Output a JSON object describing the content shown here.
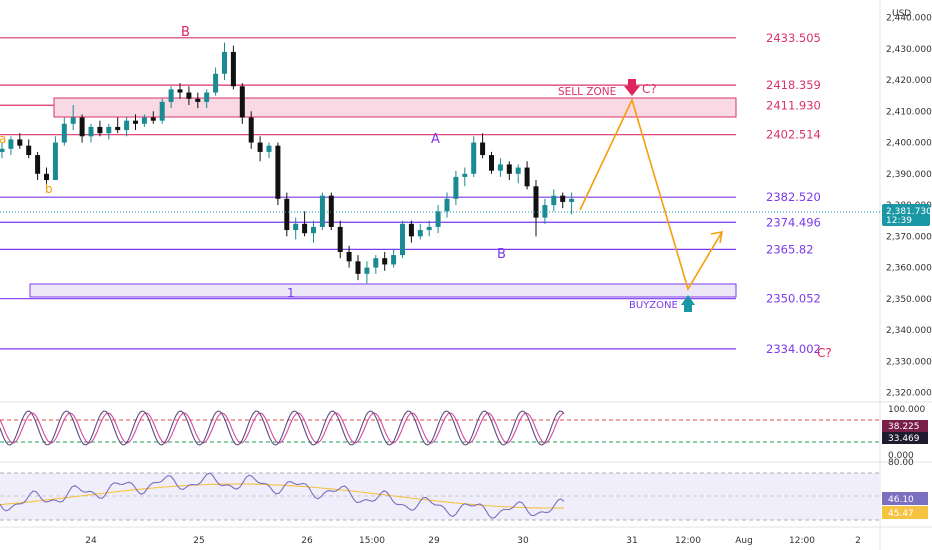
{
  "currency": "USD",
  "colors": {
    "bull": "#1a8a93",
    "bear": "#111111",
    "level_red": "#d9336b",
    "level_purple": "#7c3aed",
    "zone_fill": "#f8d9e4",
    "buy_zone_fill": "#ece8f7",
    "projection": "#f59e0b",
    "arrow_sell": "#e0245e",
    "arrow_buy": "#1a97a4",
    "stoch_k": "#5b4f7d",
    "stoch_d": "#d946a0",
    "rsi_line": "#7b6fbf",
    "rsi_ma": "#f5c242"
  },
  "price_axis": {
    "ticks": [
      "2,440.000",
      "2,430.000",
      "2,420.000",
      "2,410.000",
      "2,400.000",
      "2,390.000",
      "2,380.000",
      "2,370.000",
      "2,360.000",
      "2,350.000",
      "2,340.000",
      "2,330.000",
      "2,320.000"
    ],
    "current_price": "2,381.730",
    "countdown": "12:39"
  },
  "time_axis": {
    "labels": [
      "24",
      "25",
      "26",
      "15:00",
      "29",
      "30",
      "31",
      "12:00",
      "Aug",
      "12:00",
      "2"
    ]
  },
  "levels": [
    {
      "label": "2433.505",
      "color": "red"
    },
    {
      "label": "2418.359",
      "color": "red"
    },
    {
      "label": "2411.930",
      "color": "red"
    },
    {
      "label": "2402.514",
      "color": "red"
    },
    {
      "label": "2382.520",
      "color": "purple"
    },
    {
      "label": "2374.496",
      "color": "purple"
    },
    {
      "label": "2365.82",
      "color": "purple"
    },
    {
      "label": "2350.052",
      "color": "purple"
    },
    {
      "label": "2334.002",
      "color": "purple"
    }
  ],
  "annotations": {
    "wave_b_top": "B",
    "wave_a_left": "a",
    "wave_b_left": "b",
    "wave_a_mid": "A",
    "wave_b_mid": "B",
    "wave_1": "1",
    "sell_zone": "SELL ZONE",
    "c_top": "C?",
    "buy_zone": "BUYZONE",
    "c_bottom": "C?"
  },
  "stoch": {
    "ticks": [
      "100.000",
      "0.000"
    ],
    "k_value": "38.225",
    "d_value": "33.469"
  },
  "rsi": {
    "ticks": [
      "80.00"
    ],
    "value": "46.10",
    "ma_value": "45.47"
  },
  "chart_data": {
    "type": "candlestick",
    "ylim": [
      2317,
      2444
    ],
    "candles": [
      {
        "o": 2397,
        "h": 2400,
        "l": 2395,
        "c": 2398
      },
      {
        "o": 2398,
        "h": 2402,
        "l": 2396,
        "c": 2401
      },
      {
        "o": 2401,
        "h": 2403,
        "l": 2398,
        "c": 2399
      },
      {
        "o": 2399,
        "h": 2401,
        "l": 2395,
        "c": 2396
      },
      {
        "o": 2396,
        "h": 2397,
        "l": 2388,
        "c": 2390
      },
      {
        "o": 2390,
        "h": 2392,
        "l": 2386,
        "c": 2388
      },
      {
        "o": 2388,
        "h": 2402,
        "l": 2388,
        "c": 2400
      },
      {
        "o": 2400,
        "h": 2408,
        "l": 2399,
        "c": 2406
      },
      {
        "o": 2406,
        "h": 2412,
        "l": 2404,
        "c": 2408
      },
      {
        "o": 2408,
        "h": 2409,
        "l": 2400,
        "c": 2402
      },
      {
        "o": 2402,
        "h": 2406,
        "l": 2400,
        "c": 2405
      },
      {
        "o": 2405,
        "h": 2407,
        "l": 2402,
        "c": 2403
      },
      {
        "o": 2403,
        "h": 2406,
        "l": 2401,
        "c": 2405
      },
      {
        "o": 2405,
        "h": 2408,
        "l": 2403,
        "c": 2404
      },
      {
        "o": 2404,
        "h": 2408,
        "l": 2402,
        "c": 2407
      },
      {
        "o": 2407,
        "h": 2409,
        "l": 2404,
        "c": 2406
      },
      {
        "o": 2406,
        "h": 2409,
        "l": 2405,
        "c": 2408
      },
      {
        "o": 2408,
        "h": 2410,
        "l": 2406,
        "c": 2407
      },
      {
        "o": 2407,
        "h": 2414,
        "l": 2406,
        "c": 2413
      },
      {
        "o": 2413,
        "h": 2418,
        "l": 2411,
        "c": 2417
      },
      {
        "o": 2417,
        "h": 2419,
        "l": 2414,
        "c": 2416
      },
      {
        "o": 2416,
        "h": 2418,
        "l": 2412,
        "c": 2414
      },
      {
        "o": 2414,
        "h": 2416,
        "l": 2411,
        "c": 2413
      },
      {
        "o": 2413,
        "h": 2417,
        "l": 2411,
        "c": 2416
      },
      {
        "o": 2416,
        "h": 2424,
        "l": 2415,
        "c": 2422
      },
      {
        "o": 2422,
        "h": 2432,
        "l": 2420,
        "c": 2429
      },
      {
        "o": 2429,
        "h": 2431,
        "l": 2417,
        "c": 2418
      },
      {
        "o": 2418,
        "h": 2419,
        "l": 2406,
        "c": 2408
      },
      {
        "o": 2408,
        "h": 2410,
        "l": 2398,
        "c": 2400
      },
      {
        "o": 2400,
        "h": 2402,
        "l": 2394,
        "c": 2397
      },
      {
        "o": 2397,
        "h": 2400,
        "l": 2395,
        "c": 2399
      },
      {
        "o": 2399,
        "h": 2400,
        "l": 2380,
        "c": 2382
      },
      {
        "o": 2382,
        "h": 2384,
        "l": 2370,
        "c": 2372
      },
      {
        "o": 2372,
        "h": 2376,
        "l": 2369,
        "c": 2374
      },
      {
        "o": 2374,
        "h": 2378,
        "l": 2370,
        "c": 2371
      },
      {
        "o": 2371,
        "h": 2375,
        "l": 2368,
        "c": 2373
      },
      {
        "o": 2373,
        "h": 2384,
        "l": 2372,
        "c": 2383
      },
      {
        "o": 2383,
        "h": 2384,
        "l": 2372,
        "c": 2373
      },
      {
        "o": 2373,
        "h": 2375,
        "l": 2363,
        "c": 2365
      },
      {
        "o": 2365,
        "h": 2367,
        "l": 2360,
        "c": 2362
      },
      {
        "o": 2362,
        "h": 2364,
        "l": 2356,
        "c": 2358
      },
      {
        "o": 2358,
        "h": 2362,
        "l": 2355,
        "c": 2360
      },
      {
        "o": 2360,
        "h": 2364,
        "l": 2358,
        "c": 2363
      },
      {
        "o": 2363,
        "h": 2365,
        "l": 2359,
        "c": 2361
      },
      {
        "o": 2361,
        "h": 2366,
        "l": 2360,
        "c": 2364
      },
      {
        "o": 2364,
        "h": 2375,
        "l": 2363,
        "c": 2374
      },
      {
        "o": 2374,
        "h": 2375,
        "l": 2368,
        "c": 2370
      },
      {
        "o": 2370,
        "h": 2374,
        "l": 2369,
        "c": 2372
      },
      {
        "o": 2372,
        "h": 2375,
        "l": 2370,
        "c": 2373
      },
      {
        "o": 2373,
        "h": 2380,
        "l": 2371,
        "c": 2378
      },
      {
        "o": 2378,
        "h": 2384,
        "l": 2376,
        "c": 2382
      },
      {
        "o": 2382,
        "h": 2391,
        "l": 2380,
        "c": 2389
      },
      {
        "o": 2389,
        "h": 2392,
        "l": 2386,
        "c": 2390
      },
      {
        "o": 2390,
        "h": 2402,
        "l": 2389,
        "c": 2400
      },
      {
        "o": 2400,
        "h": 2403,
        "l": 2395,
        "c": 2396
      },
      {
        "o": 2396,
        "h": 2397,
        "l": 2390,
        "c": 2391
      },
      {
        "o": 2391,
        "h": 2395,
        "l": 2389,
        "c": 2393
      },
      {
        "o": 2393,
        "h": 2394,
        "l": 2388,
        "c": 2390
      },
      {
        "o": 2390,
        "h": 2393,
        "l": 2387,
        "c": 2392
      },
      {
        "o": 2392,
        "h": 2394,
        "l": 2385,
        "c": 2386
      },
      {
        "o": 2386,
        "h": 2388,
        "l": 2370,
        "c": 2376
      },
      {
        "o": 2376,
        "h": 2382,
        "l": 2374,
        "c": 2380
      },
      {
        "o": 2380,
        "h": 2385,
        "l": 2378,
        "c": 2383
      },
      {
        "o": 2383,
        "h": 2384,
        "l": 2379,
        "c": 2381
      },
      {
        "o": 2381,
        "h": 2384,
        "l": 2377,
        "c": 2382
      }
    ]
  }
}
